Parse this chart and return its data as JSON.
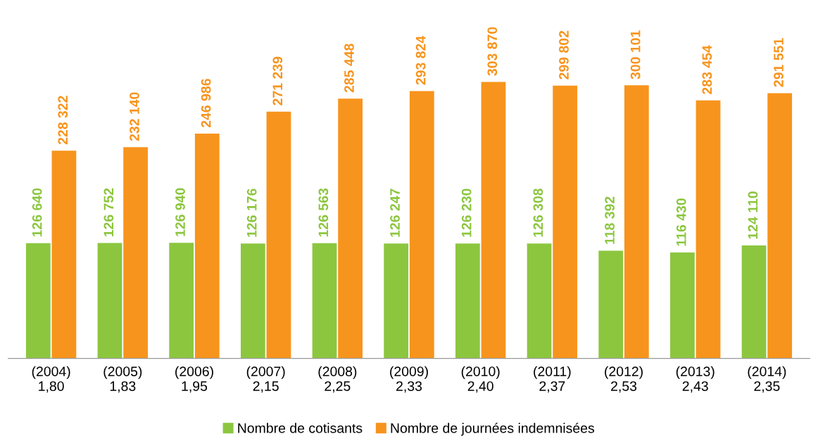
{
  "chart_data": {
    "type": "bar",
    "categories": [
      "(2004)\n1,80",
      "(2005)\n1,83",
      "(2006)\n1,95",
      "(2007)\n2,15",
      "(2008)\n2,25",
      "(2009)\n2,33",
      "(2010)\n2,40",
      "(2011)\n2,37",
      "(2012)\n2,53",
      "(2013)\n2,43",
      "(2014)\n2,35"
    ],
    "legend": "bottom",
    "grid": false,
    "tick_labels": "x",
    "series": [
      {
        "name": "Nombre de cotisants",
        "color": "#8cc63f",
        "values": [
          126640,
          126752,
          126940,
          126176,
          126563,
          126247,
          126230,
          126308,
          118392,
          116430,
          124110
        ],
        "value_labels": [
          "126 640",
          "126 752",
          "126 940",
          "126 176",
          "126 563",
          "126 247",
          "126 230",
          "126 308",
          "118 392",
          "116 430",
          "124 110"
        ]
      },
      {
        "name": "Nombre de journées indemnisées",
        "color": "#f7941d",
        "values": [
          228322,
          232140,
          246986,
          271239,
          285448,
          293824,
          303870,
          299802,
          300101,
          283454,
          291551
        ],
        "value_labels": [
          "228 322",
          "232 140",
          "246 986",
          "271 239",
          "285 448",
          "293 824",
          "303 870",
          "299 802",
          "300 101",
          "283 454",
          "291 551"
        ]
      }
    ]
  }
}
